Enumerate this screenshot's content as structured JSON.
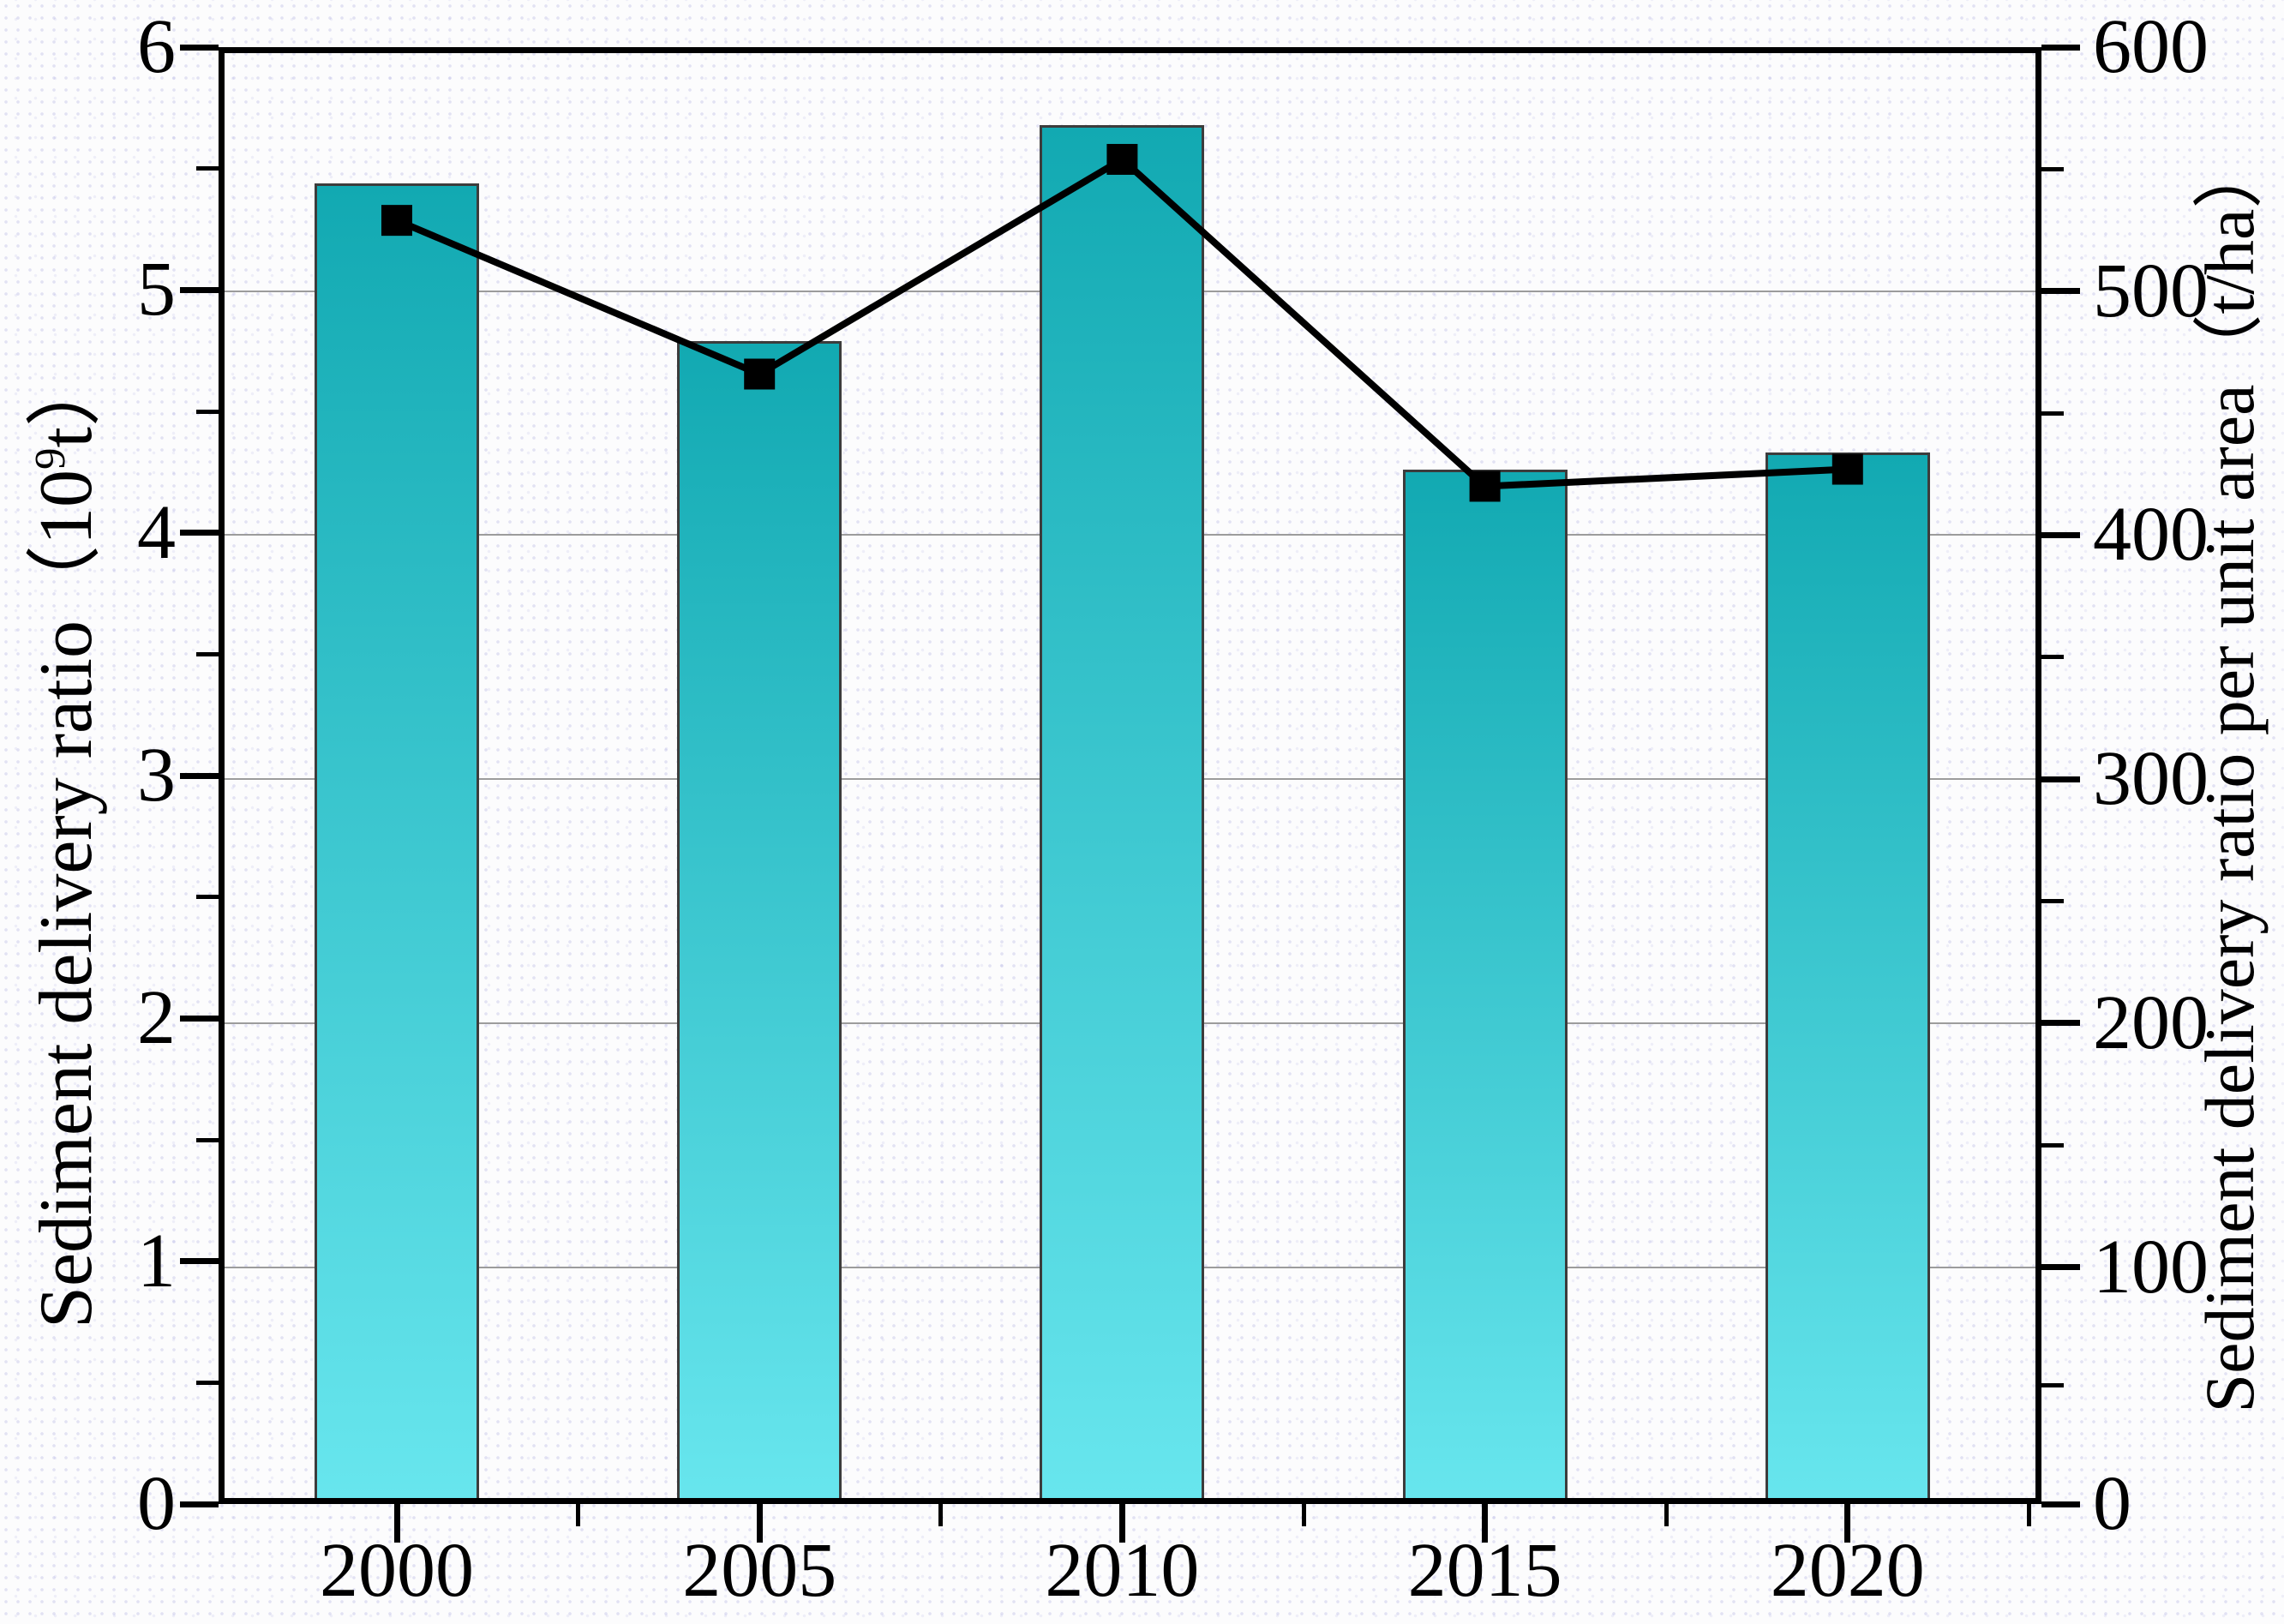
{
  "chart_data": {
    "type": "bar+line",
    "categories": [
      "2000",
      "2005",
      "2010",
      "2015",
      "2020"
    ],
    "series": [
      {
        "name": "Sediment delivery ratio (10^9 t)",
        "type": "bar",
        "axis": "left",
        "values": [
          5.44,
          4.79,
          5.68,
          4.26,
          4.33
        ]
      },
      {
        "name": "Sediment delivery ratio per unit area (t/ha)",
        "type": "line",
        "axis": "right",
        "values": [
          529,
          466,
          554,
          420,
          427
        ]
      }
    ],
    "left_axis": {
      "title_prefix": "Sediment delivery ratio（10",
      "title_sup": "9",
      "title_suffix": "t）",
      "min": 0,
      "max": 6,
      "major_ticks": [
        0,
        1,
        2,
        3,
        4,
        5,
        6
      ],
      "minor_ticks": [
        0.5,
        1.5,
        2.5,
        3.5,
        4.5,
        5.5
      ]
    },
    "right_axis": {
      "title": "Sediment delivery ratio per unit area（t/ha）",
      "min": 0,
      "max": 600,
      "major_ticks": [
        600,
        500,
        400,
        300,
        200,
        100,
        0
      ]
    },
    "x_axis": {
      "tick_labels": [
        "2000",
        "2005",
        "2010",
        "2015",
        "2020"
      ]
    },
    "grid": {
      "horizontal": true,
      "at_right_axis_values": [
        500,
        400,
        300,
        200,
        100
      ]
    },
    "legend": "none"
  },
  "style": {
    "bar_top_color": "#12a9b2",
    "bar_bottom_color": "#68e6ee",
    "bar_border_color": "#3c3c3c",
    "grid_color": "#9c9c9c",
    "axis_color": "#000000",
    "line_color": "#000000",
    "marker_shape": "filled-square"
  }
}
